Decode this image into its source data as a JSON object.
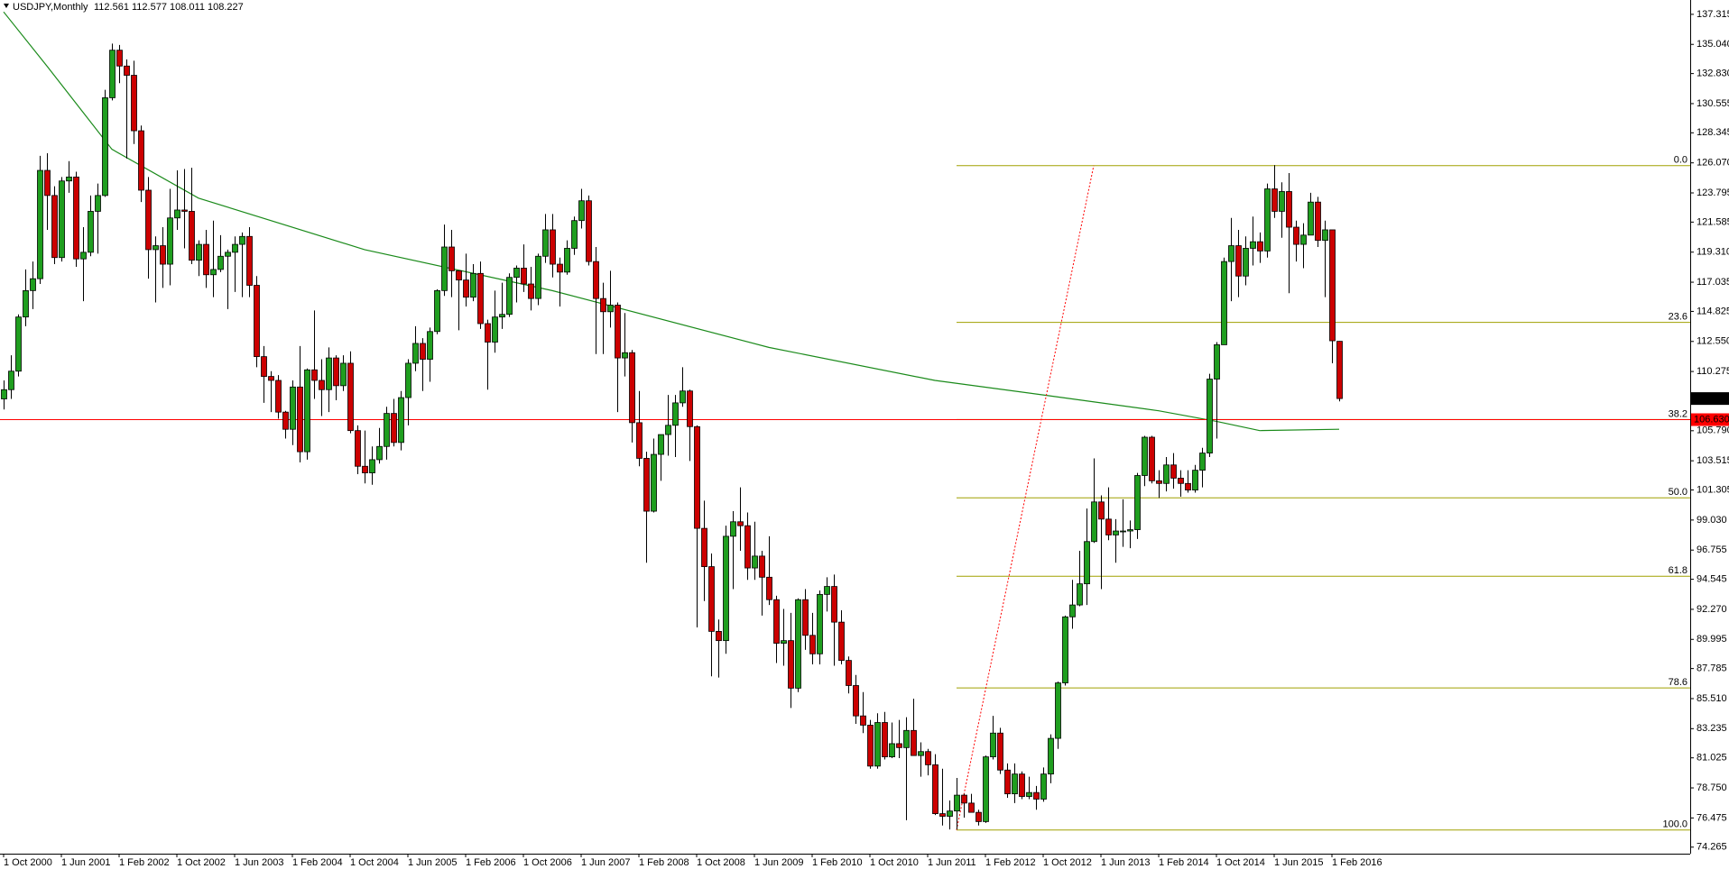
{
  "chart_data": {
    "type": "candlestick",
    "title": "USDJPY,Monthly",
    "up_color": "#1f9e1f",
    "down_color": "#cc0000",
    "ylim": [
      73.77,
      138.4
    ],
    "yticks": [
      137.315,
      {
        "value": 135.04,
        "label": "135.040"
      },
      {
        "value": 132.83,
        "label": "132.830"
      },
      130.555,
      128.345,
      {
        "value": 126.07,
        "label": "126.070"
      },
      123.795,
      121.585,
      {
        "value": 119.31,
        "label": "119.310"
      },
      117.035,
      114.825,
      {
        "value": 112.55,
        "label": "112.550"
      },
      110.275,
      {
        "value": 105.79,
        "label": "105.790"
      },
      103.515,
      101.305,
      {
        "value": 99.03,
        "label": "99.030"
      },
      96.755,
      94.545,
      {
        "value": 92.27,
        "label": "92.270"
      },
      89.995,
      87.785,
      {
        "value": 85.51,
        "label": "85.510"
      },
      83.235,
      81.025,
      {
        "value": 78.75,
        "label": "78.750"
      },
      76.475,
      74.265
    ],
    "categories": [
      "1 Oct 2000",
      null,
      null,
      null,
      null,
      null,
      null,
      null,
      "1 Jun 2001",
      null,
      null,
      null,
      null,
      null,
      null,
      null,
      "1 Feb 2002",
      null,
      null,
      null,
      null,
      null,
      null,
      null,
      "1 Oct 2002",
      null,
      null,
      null,
      null,
      null,
      null,
      null,
      "1 Jun 2003",
      null,
      null,
      null,
      null,
      null,
      null,
      null,
      "1 Feb 2004",
      null,
      null,
      null,
      null,
      null,
      null,
      null,
      "1 Oct 2004",
      null,
      null,
      null,
      null,
      null,
      null,
      null,
      "1 Jun 2005",
      null,
      null,
      null,
      null,
      null,
      null,
      null,
      "1 Feb 2006",
      null,
      null,
      null,
      null,
      null,
      null,
      null,
      "1 Oct 2006",
      null,
      null,
      null,
      null,
      null,
      null,
      null,
      "1 Jun 2007",
      null,
      null,
      null,
      null,
      null,
      null,
      null,
      "1 Feb 2008",
      null,
      null,
      null,
      null,
      null,
      null,
      null,
      "1 Oct 2008",
      null,
      null,
      null,
      null,
      null,
      null,
      null,
      "1 Jun 2009",
      null,
      null,
      null,
      null,
      null,
      null,
      null,
      "1 Feb 2010",
      null,
      null,
      null,
      null,
      null,
      null,
      null,
      "1 Oct 2010",
      null,
      null,
      null,
      null,
      null,
      null,
      null,
      "1 Jun 2011",
      null,
      null,
      null,
      null,
      null,
      null,
      null,
      "1 Feb 2012",
      null,
      null,
      null,
      null,
      null,
      null,
      null,
      "1 Oct 2012",
      null,
      null,
      null,
      null,
      null,
      null,
      null,
      "1 Jun 2013",
      null,
      null,
      null,
      null,
      null,
      null,
      null,
      "1 Feb 2014",
      null,
      null,
      null,
      null,
      null,
      null,
      null,
      "1 Oct 2014",
      null,
      null,
      null,
      null,
      null,
      null,
      null,
      "1 Jun 2015",
      null,
      null,
      null,
      null,
      null,
      null,
      null,
      "1 Feb 2016",
      null
    ],
    "candles": [
      [
        108.2,
        109.6,
        107.4,
        108.9
      ],
      [
        108.9,
        111.5,
        108.2,
        110.3
      ],
      [
        110.3,
        114.6,
        109.9,
        114.4
      ],
      [
        114.4,
        118.0,
        113.7,
        116.4
      ],
      [
        116.4,
        118.6,
        115.0,
        117.3
      ],
      [
        117.3,
        126.6,
        116.9,
        125.5
      ],
      [
        125.5,
        126.8,
        121.0,
        123.6
      ],
      [
        123.6,
        124.3,
        118.4,
        118.9
      ],
      [
        118.9,
        125.0,
        118.6,
        124.7
      ],
      [
        124.7,
        126.2,
        123.8,
        125.0
      ],
      [
        125.0,
        125.4,
        118.2,
        118.8
      ],
      [
        118.8,
        121.2,
        115.6,
        119.3
      ],
      [
        119.3,
        123.6,
        119.0,
        122.4
      ],
      [
        122.4,
        124.5,
        119.2,
        123.6
      ],
      [
        123.6,
        131.6,
        123.5,
        131.0
      ],
      [
        131.0,
        135.1,
        130.8,
        134.6
      ],
      [
        134.6,
        135.0,
        132.1,
        133.4
      ],
      [
        133.4,
        133.9,
        126.4,
        132.7
      ],
      [
        132.7,
        133.8,
        127.5,
        128.5
      ],
      [
        128.5,
        128.9,
        123.1,
        124.0
      ],
      [
        124.0,
        125.0,
        117.3,
        119.5
      ],
      [
        119.5,
        120.5,
        115.5,
        119.8
      ],
      [
        119.8,
        121.2,
        116.6,
        118.4
      ],
      [
        118.4,
        124.1,
        116.8,
        121.9
      ],
      [
        121.9,
        125.5,
        121.0,
        122.5
      ],
      [
        122.5,
        125.6,
        119.6,
        122.4
      ],
      [
        122.4,
        125.7,
        118.4,
        118.7
      ],
      [
        118.7,
        120.2,
        117.5,
        119.9
      ],
      [
        119.9,
        121.0,
        116.6,
        117.6
      ],
      [
        117.6,
        121.7,
        115.9,
        118.0
      ],
      [
        118.0,
        120.6,
        117.8,
        119.0
      ],
      [
        119.0,
        119.5,
        115.0,
        119.3
      ],
      [
        119.3,
        120.5,
        116.3,
        119.9
      ],
      [
        119.9,
        120.8,
        115.9,
        120.5
      ],
      [
        120.5,
        121.2,
        115.9,
        116.8
      ],
      [
        116.8,
        117.5,
        110.6,
        111.4
      ],
      [
        111.4,
        112.2,
        107.9,
        109.9
      ],
      [
        109.9,
        110.3,
        107.2,
        109.6
      ],
      [
        109.6,
        110.0,
        106.7,
        107.2
      ],
      [
        107.2,
        107.3,
        105.2,
        105.9
      ],
      [
        105.9,
        109.6,
        104.7,
        109.1
      ],
      [
        109.1,
        112.2,
        103.4,
        104.2
      ],
      [
        104.2,
        110.5,
        103.6,
        110.4
      ],
      [
        110.4,
        114.9,
        108.2,
        109.6
      ],
      [
        109.6,
        111.2,
        106.9,
        108.9
      ],
      [
        108.9,
        112.1,
        107.2,
        111.3
      ],
      [
        111.3,
        111.5,
        108.1,
        109.2
      ],
      [
        109.2,
        111.5,
        108.8,
        110.9
      ],
      [
        110.9,
        111.8,
        105.6,
        105.8
      ],
      [
        105.8,
        106.2,
        102.5,
        103.1
      ],
      [
        103.1,
        105.8,
        101.8,
        102.6
      ],
      [
        102.6,
        104.6,
        101.7,
        103.6
      ],
      [
        103.6,
        106.0,
        103.3,
        104.6
      ],
      [
        104.6,
        107.6,
        103.6,
        107.1
      ],
      [
        107.1,
        108.2,
        104.6,
        104.9
      ],
      [
        104.9,
        108.8,
        104.3,
        108.3
      ],
      [
        108.3,
        111.2,
        106.2,
        110.9
      ],
      [
        110.9,
        113.7,
        110.3,
        112.4
      ],
      [
        112.4,
        112.8,
        108.8,
        111.2
      ],
      [
        111.2,
        113.6,
        109.5,
        113.3
      ],
      [
        113.3,
        116.5,
        113.1,
        116.4
      ],
      [
        116.4,
        121.4,
        116.0,
        119.7
      ],
      [
        119.7,
        121.0,
        115.9,
        117.9
      ],
      [
        117.9,
        117.9,
        113.4,
        117.2
      ],
      [
        117.2,
        119.2,
        115.2,
        115.9
      ],
      [
        115.9,
        118.4,
        115.6,
        117.7
      ],
      [
        117.7,
        118.6,
        113.5,
        113.9
      ],
      [
        113.9,
        114.2,
        108.9,
        112.5
      ],
      [
        112.5,
        116.4,
        111.7,
        114.4
      ],
      [
        114.4,
        117.0,
        113.5,
        114.6
      ],
      [
        114.6,
        117.7,
        114.4,
        117.4
      ],
      [
        117.4,
        118.3,
        115.5,
        118.1
      ],
      [
        118.1,
        119.9,
        116.3,
        116.9
      ],
      [
        116.9,
        118.2,
        114.9,
        115.8
      ],
      [
        115.8,
        119.2,
        115.3,
        119.0
      ],
      [
        119.0,
        122.2,
        118.5,
        121.0
      ],
      [
        121.0,
        122.2,
        117.4,
        118.4
      ],
      [
        118.4,
        118.9,
        115.2,
        117.8
      ],
      [
        117.8,
        120.2,
        117.6,
        119.6
      ],
      [
        119.6,
        122.0,
        119.1,
        121.7
      ],
      [
        121.7,
        124.1,
        121.1,
        123.2
      ],
      [
        123.2,
        123.6,
        118.3,
        118.6
      ],
      [
        118.6,
        119.7,
        111.6,
        115.8
      ],
      [
        115.8,
        117.0,
        111.6,
        114.8
      ],
      [
        114.8,
        117.9,
        113.6,
        115.3
      ],
      [
        115.3,
        115.5,
        107.2,
        111.3
      ],
      [
        111.3,
        114.7,
        109.9,
        111.7
      ],
      [
        111.7,
        111.9,
        104.9,
        106.4
      ],
      [
        106.4,
        108.8,
        103.1,
        103.7
      ],
      [
        103.7,
        104.2,
        95.8,
        99.7
      ],
      [
        99.7,
        105.2,
        99.6,
        104.0
      ],
      [
        104.0,
        105.5,
        102.0,
        105.5
      ],
      [
        105.5,
        108.5,
        103.9,
        106.2
      ],
      [
        106.2,
        108.5,
        103.8,
        107.9
      ],
      [
        107.9,
        110.6,
        107.6,
        108.8
      ],
      [
        108.8,
        108.9,
        103.5,
        106.1
      ],
      [
        106.1,
        106.2,
        90.9,
        98.4
      ],
      [
        98.4,
        100.5,
        92.9,
        95.5
      ],
      [
        95.5,
        96.5,
        87.2,
        90.6
      ],
      [
        90.6,
        91.5,
        87.1,
        89.9
      ],
      [
        89.9,
        98.6,
        88.9,
        97.8
      ],
      [
        97.8,
        99.7,
        93.8,
        98.9
      ],
      [
        98.9,
        101.5,
        96.7,
        98.6
      ],
      [
        98.6,
        99.6,
        94.5,
        95.4
      ],
      [
        95.4,
        98.9,
        94.5,
        96.3
      ],
      [
        96.3,
        96.7,
        91.8,
        94.7
      ],
      [
        94.7,
        97.8,
        92.6,
        93.0
      ],
      [
        93.0,
        93.3,
        88.2,
        89.7
      ],
      [
        89.7,
        92.3,
        88.0,
        89.9
      ],
      [
        89.9,
        92.0,
        84.8,
        86.3
      ],
      [
        86.3,
        93.1,
        86.0,
        93.0
      ],
      [
        93.0,
        93.8,
        89.2,
        90.3
      ],
      [
        90.3,
        92.0,
        88.1,
        88.9
      ],
      [
        88.9,
        93.7,
        88.1,
        93.4
      ],
      [
        93.4,
        94.7,
        92.1,
        94.0
      ],
      [
        94.0,
        94.9,
        88.0,
        91.3
      ],
      [
        91.3,
        92.2,
        88.1,
        88.4
      ],
      [
        88.4,
        88.7,
        85.9,
        86.5
      ],
      [
        86.5,
        87.3,
        83.6,
        84.2
      ],
      [
        84.2,
        86.0,
        82.9,
        83.5
      ],
      [
        83.5,
        83.9,
        80.2,
        80.4
      ],
      [
        80.4,
        84.4,
        80.2,
        83.7
      ],
      [
        83.7,
        84.5,
        80.9,
        81.1
      ],
      [
        81.1,
        83.7,
        81.0,
        82.1
      ],
      [
        82.1,
        83.9,
        81.0,
        81.8
      ],
      [
        81.8,
        84.1,
        76.3,
        83.1
      ],
      [
        83.1,
        85.5,
        81.2,
        81.2
      ],
      [
        81.2,
        82.2,
        79.6,
        81.5
      ],
      [
        81.5,
        81.7,
        79.7,
        80.5
      ],
      [
        80.5,
        81.3,
        76.7,
        76.8
      ],
      [
        76.8,
        80.2,
        75.9,
        76.6
      ],
      [
        76.6,
        77.8,
        75.6,
        77.0
      ],
      [
        77.0,
        79.5,
        75.6,
        78.2
      ],
      [
        78.2,
        78.3,
        76.5,
        77.6
      ],
      [
        77.6,
        78.3,
        76.9,
        76.9
      ],
      [
        76.9,
        77.1,
        75.9,
        76.2
      ],
      [
        76.2,
        81.2,
        76.1,
        81.1
      ],
      [
        81.1,
        84.2,
        80.9,
        82.9
      ],
      [
        82.9,
        83.3,
        79.8,
        80.1
      ],
      [
        80.1,
        80.6,
        78.0,
        78.3
      ],
      [
        78.3,
        80.6,
        77.6,
        79.8
      ],
      [
        79.8,
        80.0,
        77.9,
        78.1
      ],
      [
        78.1,
        79.6,
        77.9,
        78.4
      ],
      [
        78.4,
        78.9,
        77.1,
        77.9
      ],
      [
        77.9,
        80.3,
        77.7,
        79.8
      ],
      [
        79.8,
        82.8,
        79.1,
        82.5
      ],
      [
        82.5,
        86.8,
        81.7,
        86.7
      ],
      [
        86.7,
        91.8,
        86.5,
        91.7
      ],
      [
        91.7,
        94.5,
        90.8,
        92.6
      ],
      [
        92.6,
        96.7,
        92.5,
        94.2
      ],
      [
        94.2,
        99.9,
        92.6,
        97.4
      ],
      [
        97.4,
        103.7,
        97.3,
        100.4
      ],
      [
        100.4,
        100.9,
        93.8,
        99.1
      ],
      [
        99.1,
        101.5,
        97.5,
        97.9
      ],
      [
        97.9,
        99.1,
        95.8,
        98.2
      ],
      [
        98.2,
        100.6,
        97.0,
        98.2
      ],
      [
        98.2,
        99.0,
        96.9,
        98.3
      ],
      [
        98.3,
        102.6,
        97.6,
        102.4
      ],
      [
        102.4,
        105.4,
        101.6,
        105.3
      ],
      [
        105.3,
        105.4,
        101.8,
        102.0
      ],
      [
        102.0,
        102.8,
        100.7,
        101.8
      ],
      [
        101.8,
        103.8,
        101.2,
        103.2
      ],
      [
        103.2,
        104.1,
        101.4,
        102.2
      ],
      [
        102.2,
        102.8,
        100.8,
        101.8
      ],
      [
        101.8,
        102.8,
        101.1,
        101.3
      ],
      [
        101.3,
        103.2,
        101.1,
        102.8
      ],
      [
        102.8,
        104.5,
        101.5,
        104.1
      ],
      [
        104.1,
        110.1,
        103.8,
        109.7
      ],
      [
        109.7,
        112.5,
        105.2,
        112.3
      ],
      [
        112.3,
        118.9,
        112.3,
        118.6
      ],
      [
        118.6,
        121.9,
        115.6,
        119.8
      ],
      [
        119.8,
        121.0,
        115.9,
        117.5
      ],
      [
        117.5,
        120.5,
        116.8,
        119.6
      ],
      [
        119.6,
        122.0,
        118.3,
        120.1
      ],
      [
        120.1,
        120.8,
        118.5,
        119.4
      ],
      [
        119.4,
        124.5,
        118.9,
        124.1
      ],
      [
        124.1,
        125.9,
        121.9,
        122.4
      ],
      [
        122.4,
        124.6,
        120.4,
        123.9
      ],
      [
        123.9,
        125.3,
        116.2,
        121.2
      ],
      [
        121.2,
        121.7,
        118.6,
        119.9
      ],
      [
        119.9,
        121.5,
        118.1,
        120.6
      ],
      [
        120.6,
        123.8,
        120.6,
        123.1
      ],
      [
        123.1,
        123.5,
        119.7,
        120.2
      ],
      [
        120.2,
        121.7,
        115.9,
        121.0
      ],
      [
        121.0,
        121.0,
        110.9,
        112.6
      ],
      [
        112.561,
        112.577,
        108.011,
        108.227
      ]
    ],
    "moving_average": {
      "color": "#1a8a1a",
      "x": [
        0,
        6,
        15,
        27,
        50,
        76,
        106,
        129,
        144,
        160,
        168,
        174,
        185
      ],
      "values": [
        137.5,
        133.4,
        127.1,
        123.4,
        119.5,
        116.4,
        112.1,
        109.6,
        108.5,
        107.3,
        106.5,
        105.8,
        105.9
      ]
    },
    "fibonacci": {
      "color": "#a0a000",
      "trend_color": "#ff0000",
      "anchor_x": [
        132,
        151
      ],
      "ratios": [
        {
          "value": 0,
          "label": "0.0"
        },
        23.6,
        38.2,
        {
          "value": 50,
          "label": "50.0"
        },
        61.8,
        78.6,
        {
          "value": 100,
          "label": "100.0"
        }
      ],
      "prices": [
        125.86,
        113.99,
        106.64,
        100.71,
        94.77,
        86.32,
        75.56
      ]
    },
    "horizontal_line": {
      "value": 106.63,
      "label": "106.630",
      "color": "#ff0000"
    },
    "last_price": 108.227
  }
}
